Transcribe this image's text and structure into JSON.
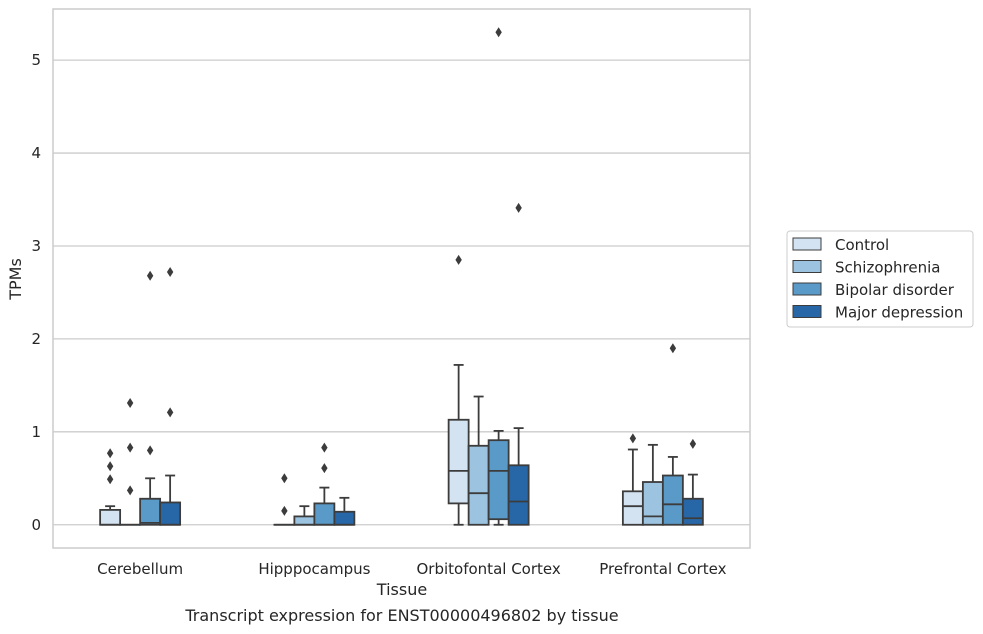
{
  "chart_data": {
    "type": "box",
    "title": "Transcript expression for ENST00000496802 by tissue",
    "xlabel": "Tissue",
    "ylabel": "TPMs",
    "ylim": [
      -0.25,
      5.55
    ],
    "yticks": [
      0,
      1,
      2,
      3,
      4,
      5
    ],
    "categories": [
      "Cerebellum",
      "Hipppocampus",
      "Orbitofontal Cortex",
      "Prefrontal Cortex"
    ],
    "grid": true,
    "legend_position": "right",
    "series": [
      {
        "name": "Control",
        "color": "#d4e3f2",
        "boxes": [
          {
            "whislo": 0.0,
            "q1": 0.0,
            "med": 0.0,
            "q3": 0.16,
            "whishi": 0.2,
            "fliers": [
              0.49,
              0.63,
              0.77
            ]
          },
          {
            "whislo": 0.0,
            "q1": 0.0,
            "med": 0.0,
            "q3": 0.0,
            "whishi": 0.0,
            "fliers": [
              0.15,
              0.5
            ]
          },
          {
            "whislo": 0.0,
            "q1": 0.23,
            "med": 0.58,
            "q3": 1.13,
            "whishi": 1.72,
            "fliers": [
              2.85
            ]
          },
          {
            "whislo": 0.0,
            "q1": 0.0,
            "med": 0.2,
            "q3": 0.36,
            "whishi": 0.81,
            "fliers": [
              0.93
            ]
          }
        ]
      },
      {
        "name": "Schizophrenia",
        "color": "#9cc3df",
        "boxes": [
          {
            "whislo": 0.0,
            "q1": 0.0,
            "med": 0.0,
            "q3": 0.0,
            "whishi": 0.0,
            "fliers": [
              0.37,
              0.83,
              1.31
            ]
          },
          {
            "whislo": 0.0,
            "q1": 0.0,
            "med": 0.0,
            "q3": 0.09,
            "whishi": 0.2,
            "fliers": []
          },
          {
            "whislo": 0.0,
            "q1": 0.0,
            "med": 0.34,
            "q3": 0.85,
            "whishi": 1.38,
            "fliers": []
          },
          {
            "whislo": 0.0,
            "q1": 0.0,
            "med": 0.09,
            "q3": 0.46,
            "whishi": 0.86,
            "fliers": []
          }
        ]
      },
      {
        "name": "Bipolar disorder",
        "color": "#5a9ac8",
        "boxes": [
          {
            "whislo": 0.0,
            "q1": 0.0,
            "med": 0.02,
            "q3": 0.28,
            "whishi": 0.5,
            "fliers": [
              0.8,
              2.68
            ]
          },
          {
            "whislo": 0.0,
            "q1": 0.0,
            "med": 0.0,
            "q3": 0.23,
            "whishi": 0.4,
            "fliers": [
              0.61,
              0.83
            ]
          },
          {
            "whislo": 0.0,
            "q1": 0.06,
            "med": 0.58,
            "q3": 0.91,
            "whishi": 1.01,
            "fliers": [
              5.3
            ]
          },
          {
            "whislo": 0.0,
            "q1": 0.0,
            "med": 0.22,
            "q3": 0.53,
            "whishi": 0.73,
            "fliers": [
              1.9
            ]
          }
        ]
      },
      {
        "name": "Major depression",
        "color": "#2767a8",
        "boxes": [
          {
            "whislo": 0.0,
            "q1": 0.0,
            "med": 0.0,
            "q3": 0.24,
            "whishi": 0.53,
            "fliers": [
              1.21,
              2.72
            ]
          },
          {
            "whislo": 0.0,
            "q1": 0.0,
            "med": 0.0,
            "q3": 0.14,
            "whishi": 0.29,
            "fliers": []
          },
          {
            "whislo": 0.0,
            "q1": 0.0,
            "med": 0.25,
            "q3": 0.64,
            "whishi": 1.04,
            "fliers": [
              3.41
            ]
          },
          {
            "whislo": 0.0,
            "q1": 0.0,
            "med": 0.07,
            "q3": 0.28,
            "whishi": 0.54,
            "fliers": [
              0.87
            ]
          }
        ]
      }
    ]
  }
}
